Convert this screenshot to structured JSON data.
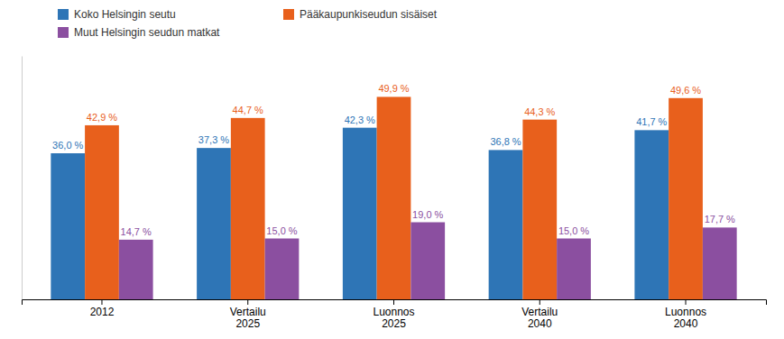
{
  "chart_data": {
    "type": "bar",
    "categories": [
      "2012",
      "Vertailu\n2025",
      "Luonnos\n2025",
      "Vertailu\n2040",
      "Luonnos\n2040"
    ],
    "series": [
      {
        "name": "Koko Helsingin seutu",
        "color": "#2E75B6",
        "values": [
          36.0,
          37.3,
          42.3,
          36.8,
          41.7
        ],
        "value_labels": [
          "36,0 %",
          "37,3 %",
          "42,3 %",
          "36,8 %",
          "41,7 %"
        ]
      },
      {
        "name": "Pääkaupunkiseudun sisäiset",
        "color": "#E8601C",
        "values": [
          42.9,
          44.7,
          49.9,
          44.3,
          49.6
        ],
        "value_labels": [
          "42,9 %",
          "44,7 %",
          "49,9 %",
          "44,3 %",
          "49,6 %"
        ]
      },
      {
        "name": "Muut Helsingin seudun matkat",
        "color": "#8B4FA0",
        "values": [
          14.7,
          15.0,
          19.0,
          15.0,
          17.7
        ],
        "value_labels": [
          "14,7 %",
          "15,0 %",
          "19,0 %",
          "15,0 %",
          "17,7 %"
        ]
      }
    ],
    "ylim": [
      0,
      60
    ],
    "data_labels": true,
    "tick_labels": "x",
    "grid": false
  }
}
